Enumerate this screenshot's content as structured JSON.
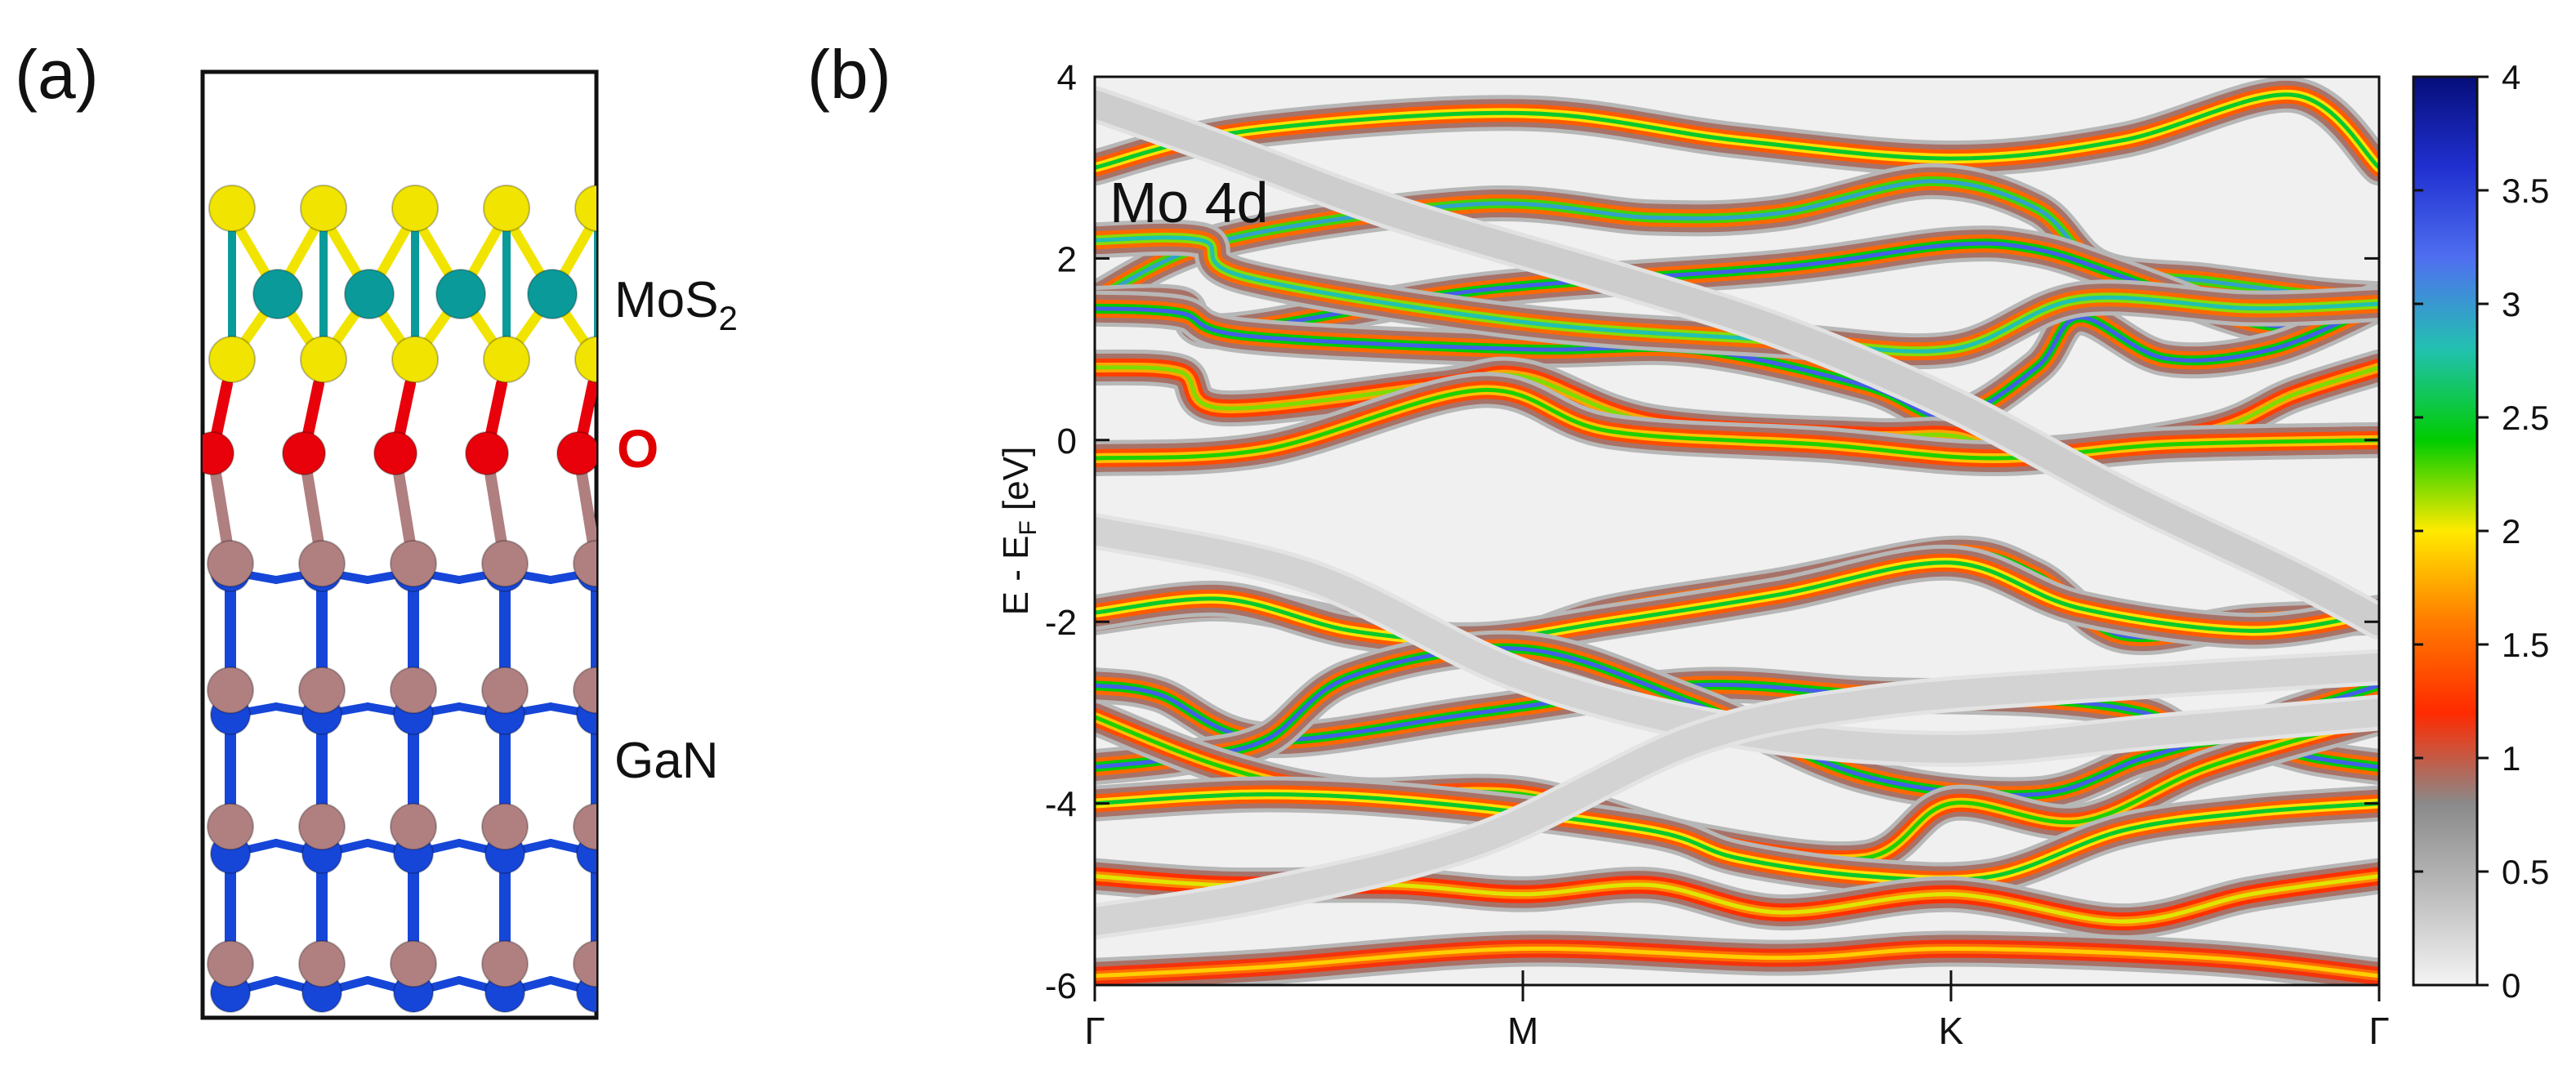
{
  "panel_a": {
    "label": "(a)",
    "labels": {
      "mos2_main": "MoS",
      "mos2_sub": "2",
      "oxygen": "O",
      "gan": "GaN"
    },
    "colors": {
      "sulfur": "#f0e400",
      "molybdenum": "#0b9a9a",
      "oxygen": "#e8000b",
      "gallium": "#b07f80",
      "nitrogen": "#1646d8",
      "frame": "#111111",
      "o_label": "#e00000"
    }
  },
  "panel_b": {
    "label": "(b)",
    "annotation": "Mo 4d",
    "colorbar": {
      "ticks": [
        "4",
        "3.5",
        "3",
        "2.5",
        "2",
        "1.5",
        "1",
        "0.5",
        "0"
      ],
      "stops": [
        "#f4f4f4",
        "#bdbdbd",
        "#8a8a8a",
        "#ff2a00",
        "#ff7b00",
        "#ffea00",
        "#00cc00",
        "#22c1b0",
        "#4f6ff0",
        "#2030d0",
        "#060e7a"
      ]
    }
  },
  "chart_data": {
    "type": "heatmap",
    "title": "Mo 4d",
    "xlabel": "",
    "ylabel_main": "E - E",
    "ylabel_sub": "F",
    "ylabel_unit": " [eV]",
    "ylim": [
      -6,
      4
    ],
    "yticks": [
      "4",
      "2",
      "0",
      "-2",
      "-4",
      "-6"
    ],
    "xlim": [
      0,
      3
    ],
    "xticks": [
      {
        "pos": 0,
        "label": "Γ"
      },
      {
        "pos": 1,
        "label": "M"
      },
      {
        "pos": 2,
        "label": "K"
      },
      {
        "pos": 3,
        "label": "Γ"
      }
    ],
    "colorbar_range": [
      0,
      4
    ],
    "bands": [
      {
        "name": "band-upper-1",
        "weight": 1.3,
        "points": [
          [
            0,
            3.0
          ],
          [
            0.35,
            3.4
          ],
          [
            1.0,
            3.6
          ],
          [
            1.5,
            3.3
          ],
          [
            2.0,
            3.1
          ],
          [
            2.4,
            3.3
          ],
          [
            2.8,
            3.8
          ],
          [
            3.0,
            3.0
          ]
        ]
      },
      {
        "name": "band-upper-2",
        "weight": 1.6,
        "points": [
          [
            0,
            1.55
          ],
          [
            0.3,
            2.2
          ],
          [
            0.9,
            2.6
          ],
          [
            1.3,
            2.45
          ],
          [
            1.6,
            2.5
          ],
          [
            1.95,
            2.85
          ],
          [
            2.2,
            2.55
          ],
          [
            2.35,
            1.9
          ],
          [
            2.6,
            1.75
          ],
          [
            2.85,
            1.6
          ],
          [
            3.0,
            1.55
          ]
        ]
      },
      {
        "name": "band-upper-3",
        "weight": 2.4,
        "points": [
          [
            0,
            1.5
          ],
          [
            0.2,
            1.5
          ],
          [
            0.3,
            1.2
          ],
          [
            0.9,
            1.65
          ],
          [
            1.6,
            1.9
          ],
          [
            2.0,
            2.15
          ],
          [
            2.2,
            2.1
          ],
          [
            2.4,
            1.8
          ],
          [
            2.7,
            1.3
          ],
          [
            2.85,
            1.3
          ],
          [
            3.0,
            1.55
          ]
        ]
      },
      {
        "name": "band-upper-4",
        "weight": 2.8,
        "points": [
          [
            0,
            1.45
          ],
          [
            0.2,
            1.4
          ],
          [
            0.35,
            1.15
          ],
          [
            1.0,
            1.0
          ],
          [
            1.4,
            1.0
          ],
          [
            1.8,
            0.6
          ],
          [
            2.0,
            0.25
          ],
          [
            2.2,
            0.8
          ],
          [
            2.3,
            1.35
          ],
          [
            2.5,
            0.9
          ],
          [
            2.75,
            1.0
          ],
          [
            3.0,
            1.5
          ]
        ]
      },
      {
        "name": "band-upper-5",
        "weight": 1.5,
        "points": [
          [
            0,
            2.2
          ],
          [
            0.25,
            2.2
          ],
          [
            0.35,
            1.8
          ],
          [
            1.0,
            1.3
          ],
          [
            1.6,
            1.1
          ],
          [
            2.0,
            1.0
          ],
          [
            2.3,
            1.55
          ],
          [
            2.7,
            1.45
          ],
          [
            3.0,
            1.5
          ]
        ]
      },
      {
        "name": "band-mid-1",
        "weight": 1.1,
        "points": [
          [
            0,
            0.8
          ],
          [
            0.2,
            0.75
          ],
          [
            0.3,
            0.35
          ],
          [
            0.8,
            0.6
          ],
          [
            1.0,
            0.7
          ],
          [
            1.3,
            0.2
          ],
          [
            1.8,
            0.05
          ],
          [
            2.0,
            0.05
          ],
          [
            2.2,
            -0.15
          ],
          [
            2.6,
            0.1
          ],
          [
            2.8,
            0.5
          ],
          [
            3.0,
            0.8
          ]
        ]
      },
      {
        "name": "band-mid-2",
        "weight": 1.2,
        "points": [
          [
            0,
            -0.2
          ],
          [
            0.4,
            -0.1
          ],
          [
            0.9,
            0.55
          ],
          [
            1.2,
            0.1
          ],
          [
            1.7,
            -0.05
          ],
          [
            2.1,
            -0.2
          ],
          [
            2.5,
            -0.05
          ],
          [
            3.0,
            0.0
          ]
        ]
      },
      {
        "name": "band-low-1",
        "weight": 2.5,
        "points": [
          [
            0,
            -1.95
          ],
          [
            0.3,
            -1.8
          ],
          [
            0.6,
            -2.05
          ],
          [
            0.9,
            -2.3
          ],
          [
            1.2,
            -1.9
          ],
          [
            1.6,
            -1.6
          ],
          [
            2.0,
            -1.25
          ],
          [
            2.2,
            -1.5
          ],
          [
            2.4,
            -2.15
          ],
          [
            2.7,
            -2.0
          ],
          [
            3.0,
            -1.95
          ]
        ]
      },
      {
        "name": "band-low-2",
        "weight": 1.3,
        "points": [
          [
            0,
            -1.9
          ],
          [
            0.3,
            -1.75
          ],
          [
            0.6,
            -2.1
          ],
          [
            0.9,
            -2.2
          ],
          [
            1.2,
            -2.0
          ],
          [
            1.6,
            -1.7
          ],
          [
            2.0,
            -1.35
          ],
          [
            2.3,
            -1.85
          ],
          [
            2.7,
            -2.1
          ],
          [
            3.0,
            -1.9
          ]
        ]
      },
      {
        "name": "band-low-3",
        "weight": 2.3,
        "points": [
          [
            0,
            -2.7
          ],
          [
            0.15,
            -2.8
          ],
          [
            0.4,
            -3.3
          ],
          [
            0.9,
            -3.0
          ],
          [
            1.4,
            -2.7
          ],
          [
            1.8,
            -2.8
          ],
          [
            2.2,
            -2.85
          ],
          [
            2.45,
            -3.0
          ],
          [
            2.6,
            -3.3
          ],
          [
            2.8,
            -3.0
          ],
          [
            3.0,
            -2.7
          ]
        ]
      },
      {
        "name": "band-low-4",
        "weight": 2.7,
        "points": [
          [
            0,
            -3.6
          ],
          [
            0.2,
            -3.5
          ],
          [
            0.4,
            -3.3
          ],
          [
            0.6,
            -2.6
          ],
          [
            1.0,
            -2.3
          ],
          [
            1.4,
            -2.9
          ],
          [
            1.8,
            -3.7
          ],
          [
            2.2,
            -3.9
          ],
          [
            2.45,
            -3.5
          ],
          [
            2.65,
            -3.3
          ],
          [
            2.85,
            -3.5
          ],
          [
            3.0,
            -3.6
          ]
        ]
      },
      {
        "name": "band-low-5",
        "weight": 1.2,
        "points": [
          [
            0,
            -3.05
          ],
          [
            0.3,
            -3.6
          ],
          [
            0.6,
            -3.9
          ],
          [
            1.0,
            -3.9
          ],
          [
            1.4,
            -4.4
          ],
          [
            1.8,
            -4.6
          ],
          [
            2.0,
            -4.0
          ],
          [
            2.3,
            -4.2
          ],
          [
            2.6,
            -3.6
          ],
          [
            3.0,
            -3.05
          ]
        ]
      },
      {
        "name": "band-low-6",
        "weight": 1.3,
        "points": [
          [
            0,
            -4.0
          ],
          [
            0.4,
            -3.9
          ],
          [
            0.8,
            -4.0
          ],
          [
            1.3,
            -4.3
          ],
          [
            1.5,
            -4.6
          ],
          [
            1.8,
            -4.8
          ],
          [
            2.1,
            -4.8
          ],
          [
            2.4,
            -4.3
          ],
          [
            2.7,
            -4.1
          ],
          [
            3.0,
            -4.0
          ]
        ]
      },
      {
        "name": "band-low-7",
        "weight": 1.0,
        "points": [
          [
            0,
            -4.8
          ],
          [
            0.3,
            -4.9
          ],
          [
            0.7,
            -4.9
          ],
          [
            1.0,
            -5.0
          ],
          [
            1.3,
            -4.9
          ],
          [
            1.6,
            -5.2
          ],
          [
            2.0,
            -5.0
          ],
          [
            2.4,
            -5.3
          ],
          [
            2.7,
            -5.0
          ],
          [
            3.0,
            -4.8
          ]
        ]
      },
      {
        "name": "band-low-8",
        "weight": 0.9,
        "points": [
          [
            0,
            -5.9
          ],
          [
            0.4,
            -5.8
          ],
          [
            1.0,
            -5.6
          ],
          [
            1.6,
            -5.7
          ],
          [
            2.0,
            -5.6
          ],
          [
            2.6,
            -5.7
          ],
          [
            3.0,
            -5.9
          ]
        ]
      },
      {
        "name": "band-faint-1",
        "weight": 0.35,
        "points": [
          [
            0,
            3.7
          ],
          [
            0.3,
            3.2
          ],
          [
            0.7,
            2.5
          ],
          [
            1.2,
            1.8
          ],
          [
            1.6,
            1.2
          ],
          [
            2.0,
            0.4
          ],
          [
            2.4,
            -0.6
          ],
          [
            2.8,
            -1.5
          ],
          [
            3.0,
            -2.0
          ]
        ]
      },
      {
        "name": "band-faint-2",
        "weight": 0.3,
        "points": [
          [
            0,
            -1.0
          ],
          [
            0.5,
            -1.5
          ],
          [
            1.0,
            -2.6
          ],
          [
            1.5,
            -3.2
          ],
          [
            2.0,
            -3.4
          ],
          [
            2.5,
            -3.2
          ],
          [
            3.0,
            -3.0
          ]
        ]
      },
      {
        "name": "band-faint-3",
        "weight": 0.3,
        "points": [
          [
            0,
            -5.3
          ],
          [
            0.4,
            -5.0
          ],
          [
            0.9,
            -4.4
          ],
          [
            1.4,
            -3.3
          ],
          [
            1.8,
            -2.9
          ],
          [
            2.3,
            -2.7
          ],
          [
            3.0,
            -2.5
          ]
        ]
      }
    ]
  }
}
